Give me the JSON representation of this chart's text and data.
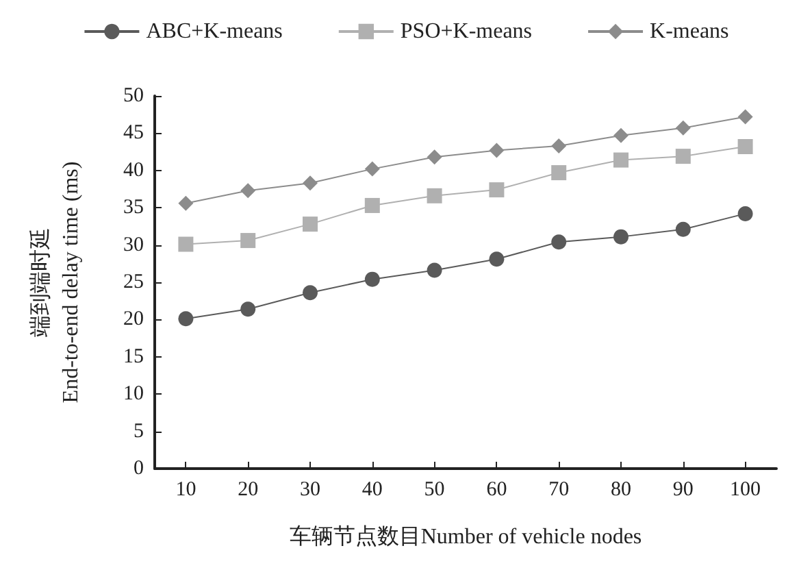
{
  "chart_data": {
    "type": "line",
    "xlabel": "车辆节点数目Number of vehicle nodes",
    "ylabel": "端到端时延\nEnd-to-end delay time (ms)",
    "categories": [
      "10",
      "20",
      "30",
      "40",
      "50",
      "60",
      "70",
      "80",
      "90",
      "100"
    ],
    "series": [
      {
        "name": "ABC+K-means",
        "color": "#5a5a5a",
        "marker": "circle",
        "values": [
          20.1,
          21.4,
          23.6,
          25.4,
          26.6,
          28.1,
          30.4,
          31.1,
          32.1,
          34.2
        ]
      },
      {
        "name": "PSO+K-means",
        "color": "#b0b0b0",
        "marker": "square",
        "values": [
          30.1,
          30.6,
          32.8,
          35.3,
          36.6,
          37.4,
          39.7,
          41.4,
          41.9,
          43.2
        ]
      },
      {
        "name": "K-means",
        "color": "#8c8c8c",
        "marker": "diamond",
        "values": [
          35.6,
          37.3,
          38.3,
          40.2,
          41.8,
          42.7,
          43.3,
          44.7,
          45.7,
          47.2
        ]
      }
    ],
    "ylim": [
      0,
      50
    ],
    "yticks": [
      0,
      5,
      10,
      15,
      20,
      25,
      30,
      35,
      40,
      45,
      50
    ],
    "grid": false,
    "legend": "top"
  }
}
